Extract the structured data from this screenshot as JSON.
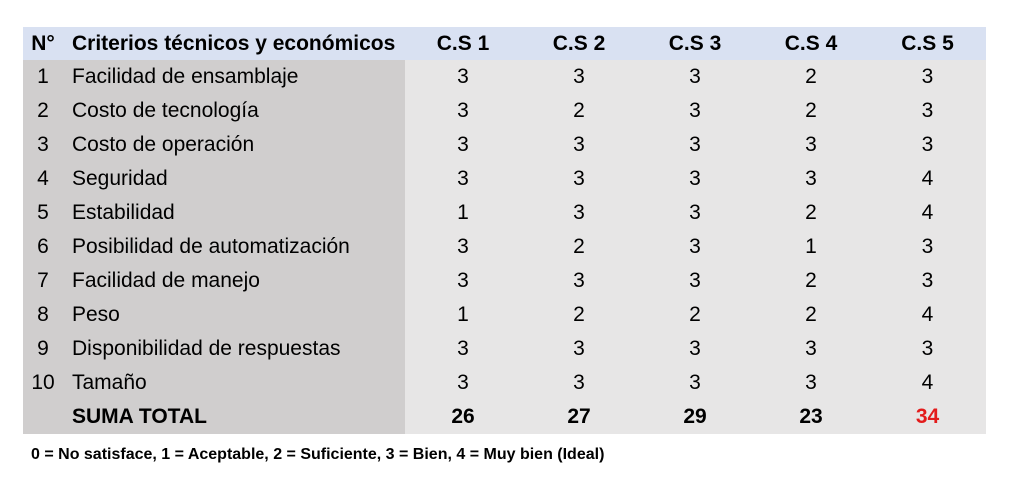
{
  "table": {
    "headers": {
      "num": "N°",
      "criteria": "Criterios técnicos y económicos",
      "cs": [
        "C.S 1",
        "C.S 2",
        "C.S 3",
        "C.S 4",
        "C.S 5"
      ]
    },
    "rows": [
      {
        "num": "1",
        "criteria": "Facilidad de ensamblaje",
        "scores": [
          "3",
          "3",
          "3",
          "2",
          "3"
        ]
      },
      {
        "num": "2",
        "criteria": "Costo de tecnología",
        "scores": [
          "3",
          "2",
          "3",
          "2",
          "3"
        ]
      },
      {
        "num": "3",
        "criteria": "Costo de operación",
        "scores": [
          "3",
          "3",
          "3",
          "3",
          "3"
        ]
      },
      {
        "num": "4",
        "criteria": "Seguridad",
        "scores": [
          "3",
          "3",
          "3",
          "3",
          "4"
        ]
      },
      {
        "num": "5",
        "criteria": "Estabilidad",
        "scores": [
          "1",
          "3",
          "3",
          "2",
          "4"
        ]
      },
      {
        "num": "6",
        "criteria": "Posibilidad de automatización",
        "scores": [
          "3",
          "2",
          "3",
          "1",
          "3"
        ]
      },
      {
        "num": "7",
        "criteria": "Facilidad de manejo",
        "scores": [
          "3",
          "3",
          "3",
          "2",
          "3"
        ]
      },
      {
        "num": "8",
        "criteria": "Peso",
        "scores": [
          "1",
          "2",
          "2",
          "2",
          "4"
        ]
      },
      {
        "num": "9",
        "criteria": "Disponibilidad de respuestas",
        "scores": [
          "3",
          "3",
          "3",
          "3",
          "3"
        ]
      },
      {
        "num": "10",
        "criteria": "Tamaño",
        "scores": [
          "3",
          "3",
          "3",
          "3",
          "4"
        ]
      }
    ],
    "total": {
      "label": "SUMA TOTAL",
      "values": [
        "26",
        "27",
        "29",
        "23",
        "34"
      ],
      "highlight_index": 4,
      "highlight_color": "#e31b1b"
    }
  },
  "colors": {
    "header_bg": "#d9e1f2",
    "label_col_bg": "#d0cece",
    "value_col_bg": "#e7e6e6"
  },
  "legend": "0 = No satisface, 1 = Aceptable, 2 = Suficiente, 3 = Bien, 4 = Muy bien (Ideal)"
}
